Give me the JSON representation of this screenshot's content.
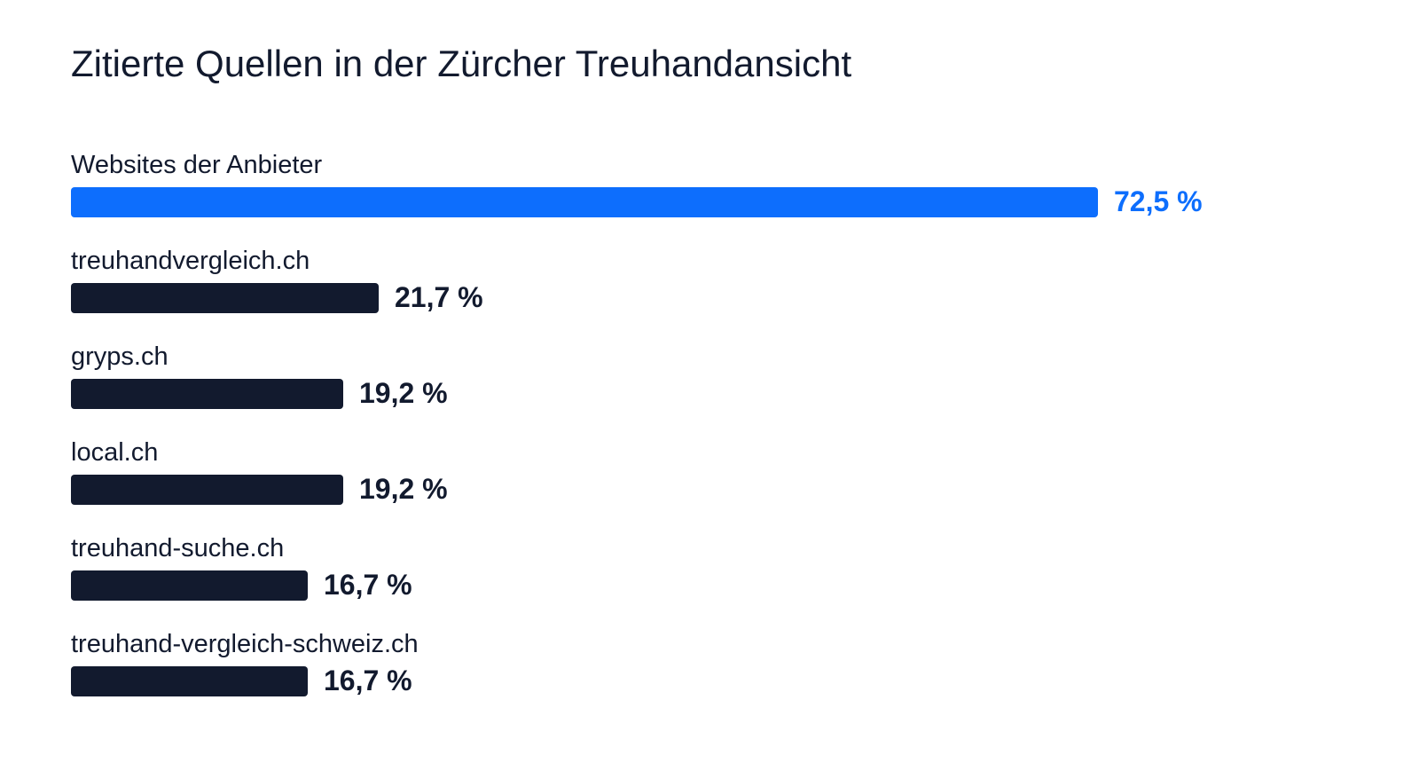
{
  "title": "Zitierte Quellen in der Zürcher Treuhandansicht",
  "colors": {
    "highlight": "#0d6efd",
    "default": "#121a2e",
    "text": "#121a2e"
  },
  "chart_data": {
    "type": "bar",
    "orientation": "horizontal",
    "title": "Zitierte Quellen in der Zürcher Treuhandansicht",
    "xlabel": "",
    "ylabel": "",
    "xlim": [
      0,
      72.5
    ],
    "grid": false,
    "categories": [
      "Websites der Anbieter",
      "treuhandvergleich.ch",
      "gryps.ch",
      "local.ch",
      "treuhand-suche.ch",
      "treuhand-vergleich-schweiz.ch"
    ],
    "values": [
      72.5,
      21.7,
      19.2,
      19.2,
      16.7,
      16.7
    ],
    "value_labels": [
      "72,5 %",
      "21,7 %",
      "19,2 %",
      "19,2 %",
      "16,7 %",
      "16,7 %"
    ],
    "highlight_index": 0
  }
}
